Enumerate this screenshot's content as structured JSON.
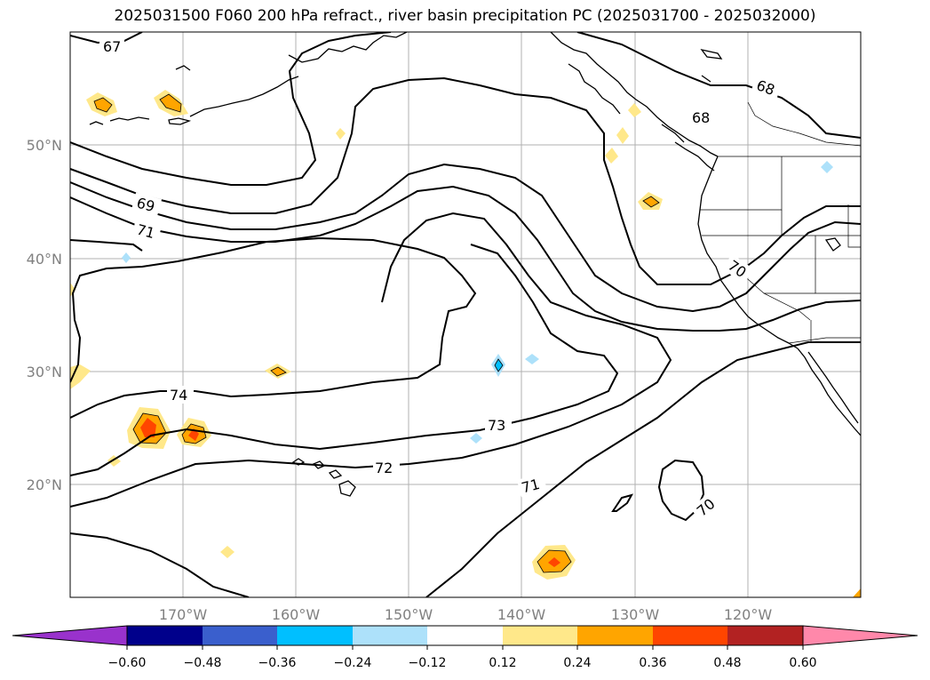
{
  "title": "2025031500 F060 200 hPa refract., river basin precipitation PC (2025031700 - 2025032000)",
  "lat_labels": [
    "50°N",
    "40°N",
    "30°N",
    "20°N"
  ],
  "lon_labels": [
    "170°W",
    "160°W",
    "150°W",
    "140°W",
    "130°W",
    "120°W"
  ],
  "contour_labels": [
    "67",
    "68",
    "68",
    "69",
    "71",
    "70",
    "74",
    "73",
    "72",
    "71",
    "70"
  ],
  "colorbar": {
    "ticks": [
      "−0.60",
      "−0.48",
      "−0.36",
      "−0.24",
      "−0.12",
      "0.12",
      "0.24",
      "0.36",
      "0.48",
      "0.60"
    ],
    "colors": [
      "#9932CC",
      "#00008B",
      "#3A5FCD",
      "#00BFFF",
      "#ADE1FA",
      "#FFFFFF",
      "#FFE88A",
      "#FFA500",
      "#FF4500",
      "#B22222",
      "#FF88AA",
      "#FF88AA"
    ]
  },
  "colors": {
    "land_outline": "#000000",
    "grid": "#b0b0b0",
    "positive_light": "#FFE88A",
    "positive_mid": "#FFA500",
    "positive_high": "#FF4500",
    "negative_light": "#ADE1FA",
    "negative_mid": "#00BFFF"
  }
}
